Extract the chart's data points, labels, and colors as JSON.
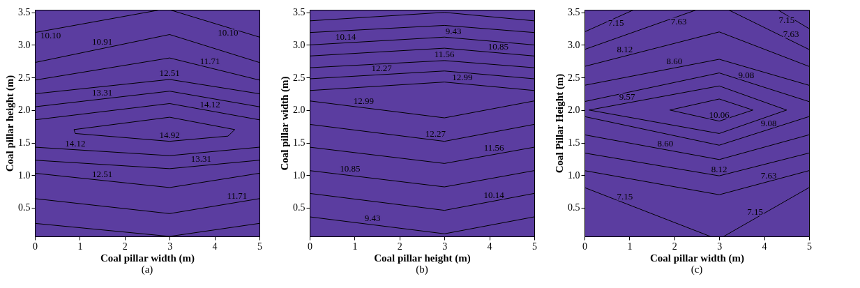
{
  "chart_data": [
    {
      "type": "line",
      "title": "(a)",
      "xlabel": "Coal pillar width (m)",
      "ylabel": "Coal pillar height (m)",
      "xlim": [
        0,
        5
      ],
      "xticks": [
        0,
        1,
        2,
        3,
        4,
        5
      ],
      "ylim": [
        0.06,
        3.54
      ],
      "yticks": [
        0.5,
        {
          "value": 1,
          "label": "1.0"
        },
        1.5,
        {
          "value": 2,
          "label": "2.0"
        },
        2.5,
        {
          "value": 3,
          "label": "3.0"
        },
        3.5
      ],
      "line_style": "solid",
      "series": [
        {
          "color": "#000000",
          "x": [
            0,
            2.8
          ],
          "values": [
            3.19,
            3.54
          ]
        },
        {
          "color": "#000000",
          "x": [
            3,
            5
          ],
          "values": [
            3.54,
            3.12
          ]
        },
        {
          "color": "#000000",
          "x": [
            0,
            3,
            5
          ],
          "values": [
            2.73,
            3.16,
            2.73
          ]
        },
        {
          "color": "#000000",
          "x": [
            0,
            3,
            5
          ],
          "values": [
            2.46,
            2.8,
            2.46
          ]
        },
        {
          "color": "#000000",
          "x": [
            0,
            3,
            5
          ],
          "values": [
            2.25,
            2.47,
            2.25
          ]
        },
        {
          "color": "#000000",
          "x": [
            0,
            3,
            5
          ],
          "values": [
            2.05,
            2.29,
            2.05
          ]
        },
        {
          "color": "#000000",
          "x": [
            0,
            3,
            5
          ],
          "values": [
            1.85,
            2.1,
            1.85
          ]
        },
        {
          "color": "#000000",
          "x": [
            0.87,
            3,
            4.45
          ],
          "values": [
            1.7,
            1.89,
            1.7
          ]
        },
        {
          "color": "#000000",
          "x": [
            0.87,
            0.9,
            3,
            4.3,
            4.45
          ],
          "values": [
            1.7,
            1.64,
            1.52,
            1.6,
            1.7
          ]
        },
        {
          "color": "#000000",
          "x": [
            0,
            3,
            5
          ],
          "values": [
            1.43,
            1.3,
            1.43
          ]
        },
        {
          "color": "#000000",
          "x": [
            0,
            3,
            5
          ],
          "values": [
            1.23,
            1.1,
            1.23
          ]
        },
        {
          "color": "#000000",
          "x": [
            0,
            3,
            5
          ],
          "values": [
            1.03,
            0.81,
            1.03
          ]
        },
        {
          "color": "#000000",
          "x": [
            0,
            3,
            5
          ],
          "values": [
            0.64,
            0.41,
            0.64
          ]
        },
        {
          "color": "#000000",
          "x": [
            0,
            3,
            5
          ],
          "values": [
            0.26,
            0.06,
            0.26
          ]
        }
      ],
      "annotations": [
        {
          "text": "10.10",
          "x": 0.35,
          "y": 3.23
        },
        {
          "text": "10.10",
          "x": 4.3,
          "y": 3.27
        },
        {
          "text": "10.91",
          "x": 1.5,
          "y": 2.95
        },
        {
          "text": "11.71",
          "x": 3.9,
          "y": 2.65
        },
        {
          "text": "12.51",
          "x": 3,
          "y": 2.47
        },
        {
          "text": "13.31",
          "x": 1.5,
          "y": 2.17
        },
        {
          "text": "14.12",
          "x": 3.9,
          "y": 1.99
        },
        {
          "text": "14.92",
          "x": 3,
          "y": 1.52
        },
        {
          "text": "14.12",
          "x": 0.9,
          "y": 1.39
        },
        {
          "text": "13.31",
          "x": 3.7,
          "y": 1.15
        },
        {
          "text": "12.51",
          "x": 1.5,
          "y": 0.92
        },
        {
          "text": "11.71",
          "x": 4.5,
          "y": 0.58
        }
      ]
    },
    {
      "type": "line",
      "title": "(b)",
      "xlabel": "Coal pillar height (m)",
      "ylabel": "Coal pillar width (m)",
      "xlim": [
        0,
        5
      ],
      "xticks": [
        0,
        1,
        2,
        3,
        4,
        5
      ],
      "ylim": [
        0.06,
        3.54
      ],
      "yticks": [
        0.5,
        {
          "value": 1,
          "label": "1.0"
        },
        1.5,
        {
          "value": 2,
          "label": "2.0"
        },
        2.5,
        {
          "value": 3,
          "label": "3.0"
        },
        3.5
      ],
      "line_style": "solid",
      "series": [
        {
          "color": "#000000",
          "x": [
            0,
            3,
            5
          ],
          "values": [
            3.37,
            3.5,
            3.37
          ]
        },
        {
          "color": "#000000",
          "x": [
            0,
            3,
            5
          ],
          "values": [
            3.19,
            3.3,
            3.19
          ]
        },
        {
          "color": "#000000",
          "x": [
            0,
            3,
            5
          ],
          "values": [
            3.0,
            3.12,
            3.0
          ]
        },
        {
          "color": "#000000",
          "x": [
            0,
            3,
            5
          ],
          "values": [
            2.83,
            2.95,
            2.83
          ]
        },
        {
          "color": "#000000",
          "x": [
            0,
            3,
            5
          ],
          "values": [
            2.65,
            2.76,
            2.65
          ]
        },
        {
          "color": "#000000",
          "x": [
            0,
            3,
            5
          ],
          "values": [
            2.48,
            2.6,
            2.48
          ]
        },
        {
          "color": "#000000",
          "x": [
            0,
            3,
            5
          ],
          "values": [
            2.3,
            2.43,
            2.3
          ]
        },
        {
          "color": "#000000",
          "x": [
            0,
            3,
            5
          ],
          "values": [
            2.14,
            1.88,
            2.14
          ]
        },
        {
          "color": "#000000",
          "x": [
            0,
            3,
            5
          ],
          "values": [
            1.78,
            1.52,
            1.78
          ]
        },
        {
          "color": "#000000",
          "x": [
            0,
            3,
            5
          ],
          "values": [
            1.43,
            1.18,
            1.43
          ]
        },
        {
          "color": "#000000",
          "x": [
            0,
            3,
            5
          ],
          "values": [
            1.07,
            0.82,
            1.07
          ]
        },
        {
          "color": "#000000",
          "x": [
            0,
            3,
            5
          ],
          "values": [
            0.72,
            0.46,
            0.72
          ]
        },
        {
          "color": "#000000",
          "x": [
            0,
            3,
            5
          ],
          "values": [
            0.36,
            0.1,
            0.36
          ]
        }
      ],
      "annotations": [
        {
          "text": "9.43",
          "x": 3.2,
          "y": 3.29
        },
        {
          "text": "10.14",
          "x": 0.8,
          "y": 3.03
        },
        {
          "text": "10.85",
          "x": 4.2,
          "y": 2.88
        },
        {
          "text": "11.56",
          "x": 3,
          "y": 2.76
        },
        {
          "text": "12.27",
          "x": 1.6,
          "y": 2.54
        },
        {
          "text": "12.99",
          "x": 3.4,
          "y": 2.4
        },
        {
          "text": "12.99",
          "x": 1.2,
          "y": 2.04
        },
        {
          "text": "12.27",
          "x": 2.8,
          "y": 1.54
        },
        {
          "text": "11.56",
          "x": 4.1,
          "y": 1.32
        },
        {
          "text": "10.85",
          "x": 0.9,
          "y": 1.0
        },
        {
          "text": "10.14",
          "x": 4.1,
          "y": 0.6
        },
        {
          "text": "9.43",
          "x": 1.4,
          "y": 0.24
        }
      ]
    },
    {
      "type": "line",
      "title": "(c)",
      "xlabel": "Coal pillar width (m)",
      "ylabel": "Coal Pillar Height (m)",
      "xlim": [
        0,
        5
      ],
      "xticks": [
        0,
        1,
        2,
        3,
        4,
        5
      ],
      "ylim": [
        0.06,
        3.54
      ],
      "yticks": [
        0.5,
        {
          "value": 1,
          "label": "1.0"
        },
        1.5,
        {
          "value": 2,
          "label": "2.0"
        },
        2.5,
        {
          "value": 3,
          "label": "3.0"
        },
        3.5
      ],
      "line_style": "solid",
      "series": [
        {
          "color": "#000000",
          "x": [
            0,
            1.1
          ],
          "values": [
            3.2,
            3.54
          ]
        },
        {
          "color": "#000000",
          "x": [
            0,
            2.5
          ],
          "values": [
            2.93,
            3.54
          ]
        },
        {
          "color": "#000000",
          "x": [
            4.3,
            5
          ],
          "values": [
            3.54,
            3.25
          ]
        },
        {
          "color": "#000000",
          "x": [
            3.2,
            5
          ],
          "values": [
            3.54,
            2.93
          ]
        },
        {
          "color": "#000000",
          "x": [
            0,
            3,
            5
          ],
          "values": [
            2.67,
            3.2,
            2.67
          ]
        },
        {
          "color": "#000000",
          "x": [
            0,
            3,
            5
          ],
          "values": [
            2.38,
            2.78,
            2.38
          ]
        },
        {
          "color": "#000000",
          "x": [
            0,
            3,
            5
          ],
          "values": [
            2.13,
            2.57,
            2.13
          ]
        },
        {
          "color": "#000000",
          "x": [
            0.1,
            3,
            4.5
          ],
          "values": [
            2.0,
            2.37,
            2.0
          ]
        },
        {
          "color": "#000000",
          "x": [
            0.1,
            3,
            4.5
          ],
          "values": [
            2.0,
            1.64,
            2.0
          ]
        },
        {
          "color": "#000000",
          "x": [
            1.9,
            3,
            3.75
          ],
          "values": [
            2.0,
            2.17,
            2.0
          ]
        },
        {
          "color": "#000000",
          "x": [
            1.9,
            3,
            3.75
          ],
          "values": [
            2.0,
            1.83,
            2.0
          ]
        },
        {
          "color": "#000000",
          "x": [
            0,
            3,
            5
          ],
          "values": [
            1.9,
            1.46,
            1.9
          ]
        },
        {
          "color": "#000000",
          "x": [
            0,
            3,
            5
          ],
          "values": [
            1.62,
            1.24,
            1.62
          ]
        },
        {
          "color": "#000000",
          "x": [
            0,
            3,
            5
          ],
          "values": [
            1.34,
            0.99,
            1.34
          ]
        },
        {
          "color": "#000000",
          "x": [
            0,
            3,
            5
          ],
          "values": [
            1.07,
            0.7,
            1.07
          ]
        },
        {
          "color": "#000000",
          "x": [
            0,
            2.8
          ],
          "values": [
            0.81,
            0.06
          ]
        },
        {
          "color": "#000000",
          "x": [
            3.1,
            5
          ],
          "values": [
            0.06,
            0.81
          ]
        }
      ],
      "annotations": [
        {
          "text": "7.15",
          "x": 0.7,
          "y": 3.42
        },
        {
          "text": "7.63",
          "x": 2.1,
          "y": 3.44
        },
        {
          "text": "7.15",
          "x": 4.5,
          "y": 3.46
        },
        {
          "text": "7.63",
          "x": 4.6,
          "y": 3.07
        },
        {
          "text": "8.12",
          "x": 0.9,
          "y": 2.83
        },
        {
          "text": "8.60",
          "x": 2.0,
          "y": 2.65
        },
        {
          "text": "9.08",
          "x": 3.6,
          "y": 2.44
        },
        {
          "text": "9.57",
          "x": 0.95,
          "y": 2.11
        },
        {
          "text": "10.06",
          "x": 3,
          "y": 1.83
        },
        {
          "text": "9.08",
          "x": 4.1,
          "y": 1.7
        },
        {
          "text": "8.60",
          "x": 1.8,
          "y": 1.39
        },
        {
          "text": "8.12",
          "x": 3,
          "y": 0.99
        },
        {
          "text": "7.63",
          "x": 4.1,
          "y": 0.9
        },
        {
          "text": "7.15",
          "x": 0.9,
          "y": 0.57
        },
        {
          "text": "7.15",
          "x": 3.8,
          "y": 0.34
        }
      ]
    }
  ]
}
